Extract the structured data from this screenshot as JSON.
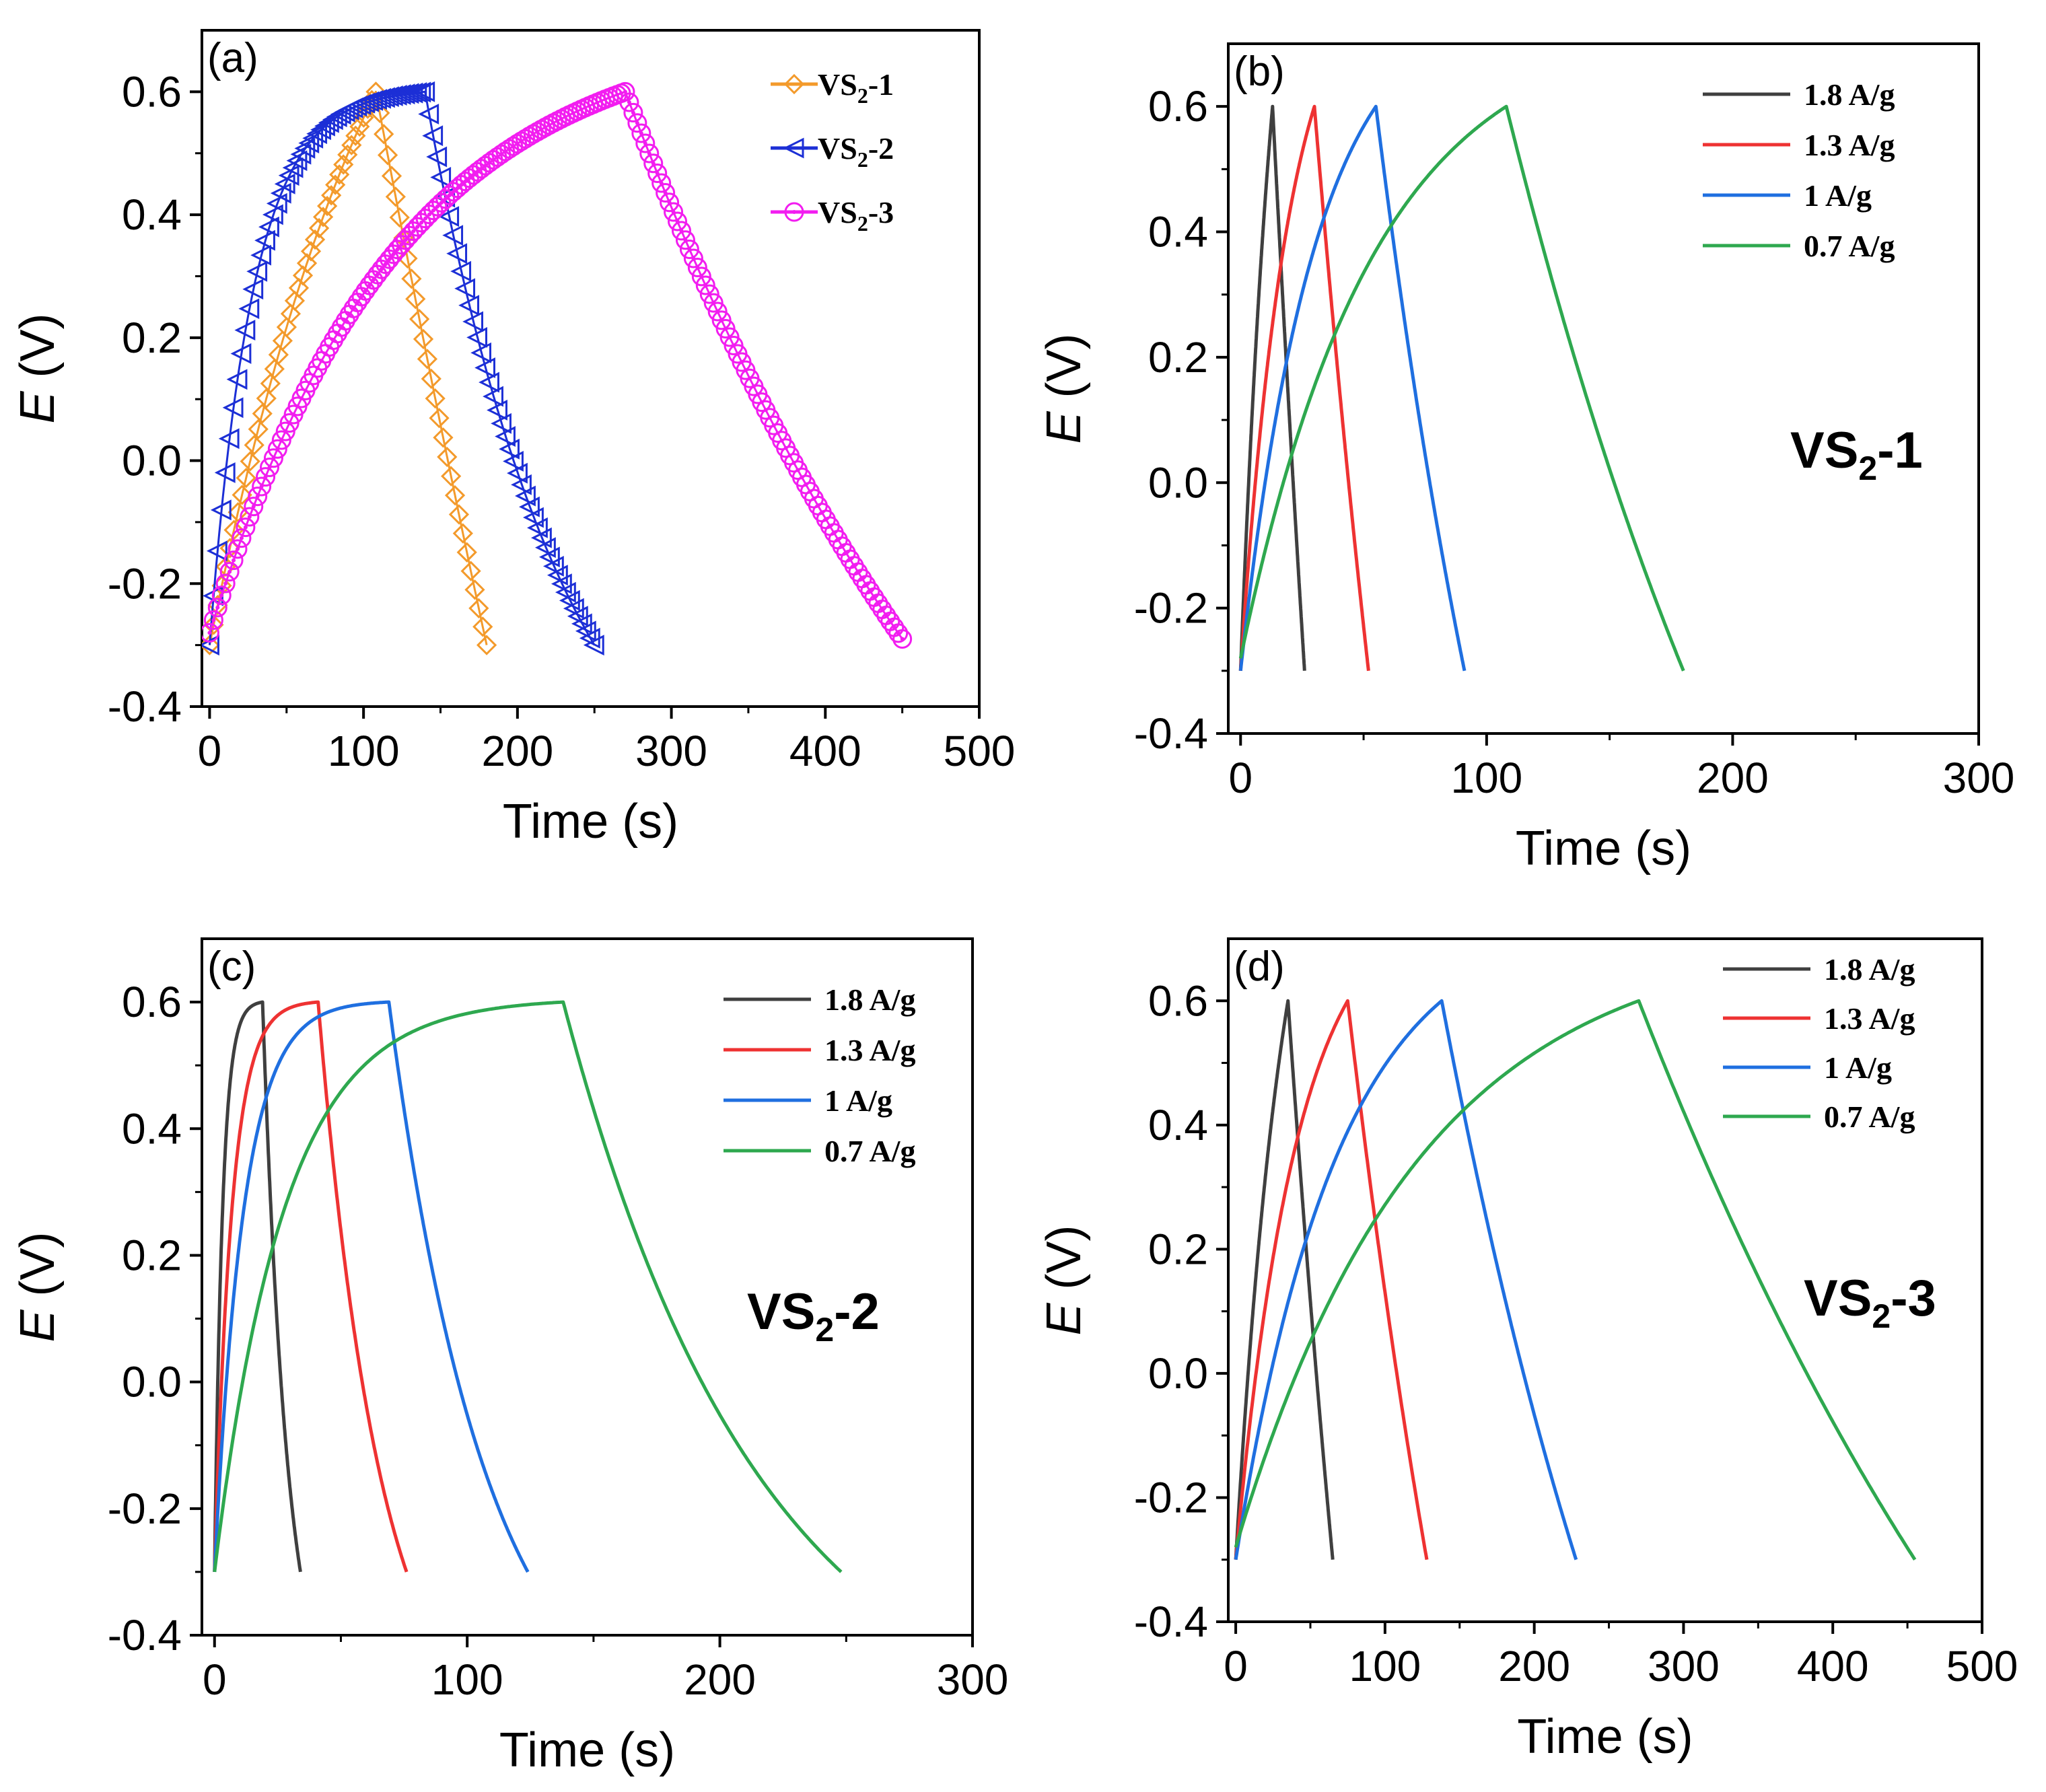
{
  "figure": {
    "xlabel": "Time (s)",
    "ylabel_italic": "E",
    "ylabel_rest": " (V)",
    "subscript_2": "2"
  },
  "chart_data": [
    {
      "type": "line",
      "panel": "(a)",
      "xlim": [
        -5,
        500
      ],
      "ylim": [
        -0.4,
        0.7
      ],
      "xticks": [
        "0",
        "100",
        "200",
        "300",
        "400",
        "500"
      ],
      "yticks": [
        "-0.4",
        "-0.2",
        "0.0",
        "0.2",
        "0.4",
        "0.6"
      ],
      "xtick_values": [
        0,
        100,
        200,
        300,
        400,
        500
      ],
      "ytick_values": [
        -0.4,
        -0.2,
        0.0,
        0.2,
        0.4,
        0.6
      ],
      "legend_position": "top-right",
      "series": [
        {
          "name": "VS2-1",
          "legend_base": "VS",
          "legend_sub": "2",
          "legend_suffix": "-1",
          "color": "#F39A2B",
          "marker": "diamond",
          "charge_end": 108,
          "total_end": 180,
          "v_start": -0.3,
          "v_peak": 0.6,
          "v_end": -0.3,
          "charge_k": 0.9,
          "discharge_k": 0.15
        },
        {
          "name": "VS2-2",
          "legend_base": "VS",
          "legend_sub": "2",
          "legend_suffix": "-2",
          "color": "#1C2FD6",
          "marker": "triangle-left",
          "charge_end": 140,
          "total_end": 250,
          "v_start": -0.3,
          "v_peak": 0.6,
          "v_end": -0.3,
          "charge_k": 5.0,
          "discharge_k": 1.2
        },
        {
          "name": "VS2-3",
          "legend_base": "VS",
          "legend_sub": "2",
          "legend_suffix": "-3",
          "color": "#F21DF0",
          "marker": "circle-dot",
          "charge_end": 270,
          "total_end": 450,
          "v_start": -0.28,
          "v_peak": 0.6,
          "v_end": -0.29,
          "charge_k": 2.2,
          "discharge_k": 0.6
        }
      ]
    },
    {
      "type": "line",
      "panel": "(b)",
      "annotation_base": "VS",
      "annotation_sub": "2",
      "annotation_suffix": "-1",
      "xlim": [
        -5,
        300
      ],
      "ylim": [
        -0.4,
        0.7
      ],
      "xticks": [
        "0",
        "100",
        "200",
        "300"
      ],
      "yticks": [
        "-0.4",
        "-0.2",
        "0.0",
        "0.2",
        "0.4",
        "0.6"
      ],
      "xtick_values": [
        0,
        100,
        200,
        300
      ],
      "ytick_values": [
        -0.4,
        -0.2,
        0.0,
        0.2,
        0.4,
        0.6
      ],
      "legend_position": "top-right",
      "series": [
        {
          "name": "1.8 A/g",
          "color": "#3F3F3F",
          "charge_end": 13,
          "total_end": 26,
          "v_start": -0.3,
          "v_peak": 0.6,
          "v_end": -0.3,
          "charge_k": 0.8,
          "discharge_k": 0.2
        },
        {
          "name": "1.3 A/g",
          "color": "#EE3232",
          "charge_end": 30,
          "total_end": 52,
          "v_start": -0.3,
          "v_peak": 0.6,
          "v_end": -0.3,
          "charge_k": 1.5,
          "discharge_k": 0.3
        },
        {
          "name": "1 A/g",
          "color": "#1F6FE0",
          "charge_end": 55,
          "total_end": 91,
          "v_start": -0.3,
          "v_peak": 0.6,
          "v_end": -0.3,
          "charge_k": 1.8,
          "discharge_k": 0.5
        },
        {
          "name": "0.7 A/g",
          "color": "#2EA84F",
          "charge_end": 108,
          "total_end": 180,
          "v_start": -0.28,
          "v_peak": 0.6,
          "v_end": -0.3,
          "charge_k": 2.0,
          "discharge_k": 0.5
        }
      ]
    },
    {
      "type": "line",
      "panel": "(c)",
      "annotation_base": "VS",
      "annotation_sub": "2",
      "annotation_suffix": "-2",
      "xlim": [
        -5,
        300
      ],
      "ylim": [
        -0.4,
        0.7
      ],
      "xticks": [
        "0",
        "100",
        "200",
        "300"
      ],
      "yticks": [
        "-0.4",
        "-0.2",
        "0.0",
        "0.2",
        "0.4",
        "0.6"
      ],
      "xtick_values": [
        0,
        100,
        200,
        300
      ],
      "ytick_values": [
        -0.4,
        -0.2,
        0.0,
        0.2,
        0.4,
        0.6
      ],
      "legend_position": "top-right",
      "series": [
        {
          "name": "1.8 A/g",
          "color": "#3F3F3F",
          "charge_end": 19,
          "total_end": 34,
          "v_start": -0.3,
          "v_peak": 0.6,
          "v_end": -0.3,
          "charge_k": 6.0,
          "discharge_k": 1.5
        },
        {
          "name": "1.3 A/g",
          "color": "#EE3232",
          "charge_end": 41,
          "total_end": 76,
          "v_start": -0.3,
          "v_peak": 0.6,
          "v_end": -0.3,
          "charge_k": 6.0,
          "discharge_k": 1.4
        },
        {
          "name": "1 A/g",
          "color": "#1F6FE0",
          "charge_end": 69,
          "total_end": 124,
          "v_start": -0.3,
          "v_peak": 0.6,
          "v_end": -0.3,
          "charge_k": 6.0,
          "discharge_k": 1.4
        },
        {
          "name": "0.7 A/g",
          "color": "#2EA84F",
          "charge_end": 138,
          "total_end": 248,
          "v_start": -0.3,
          "v_peak": 0.6,
          "v_end": -0.3,
          "charge_k": 5.0,
          "discharge_k": 1.4
        }
      ]
    },
    {
      "type": "line",
      "panel": "(d)",
      "annotation_base": "VS",
      "annotation_sub": "2",
      "annotation_suffix": "-3",
      "xlim": [
        -5,
        500
      ],
      "ylim": [
        -0.4,
        0.7
      ],
      "xticks": [
        "0",
        "100",
        "200",
        "300",
        "400",
        "500"
      ],
      "yticks": [
        "-0.4",
        "-0.2",
        "0.0",
        "0.2",
        "0.4",
        "0.6"
      ],
      "xtick_values": [
        0,
        100,
        200,
        300,
        400,
        500
      ],
      "ytick_values": [
        -0.4,
        -0.2,
        0.0,
        0.2,
        0.4,
        0.6
      ],
      "legend_position": "top-right",
      "series": [
        {
          "name": "1.8 A/g",
          "color": "#3F3F3F",
          "charge_end": 35,
          "total_end": 65,
          "v_start": -0.3,
          "v_peak": 0.6,
          "v_end": -0.3,
          "charge_k": 1.0,
          "discharge_k": 0.3
        },
        {
          "name": "1.3 A/g",
          "color": "#EE3232",
          "charge_end": 75,
          "total_end": 128,
          "v_start": -0.3,
          "v_peak": 0.6,
          "v_end": -0.3,
          "charge_k": 1.8,
          "discharge_k": 0.4
        },
        {
          "name": "1 A/g",
          "color": "#1F6FE0",
          "charge_end": 138,
          "total_end": 228,
          "v_start": -0.3,
          "v_peak": 0.6,
          "v_end": -0.3,
          "charge_k": 2.0,
          "discharge_k": 0.5
        },
        {
          "name": "0.7 A/g",
          "color": "#2EA84F",
          "charge_end": 270,
          "total_end": 455,
          "v_start": -0.28,
          "v_peak": 0.6,
          "v_end": -0.3,
          "charge_k": 2.2,
          "discharge_k": 0.5
        }
      ]
    }
  ]
}
